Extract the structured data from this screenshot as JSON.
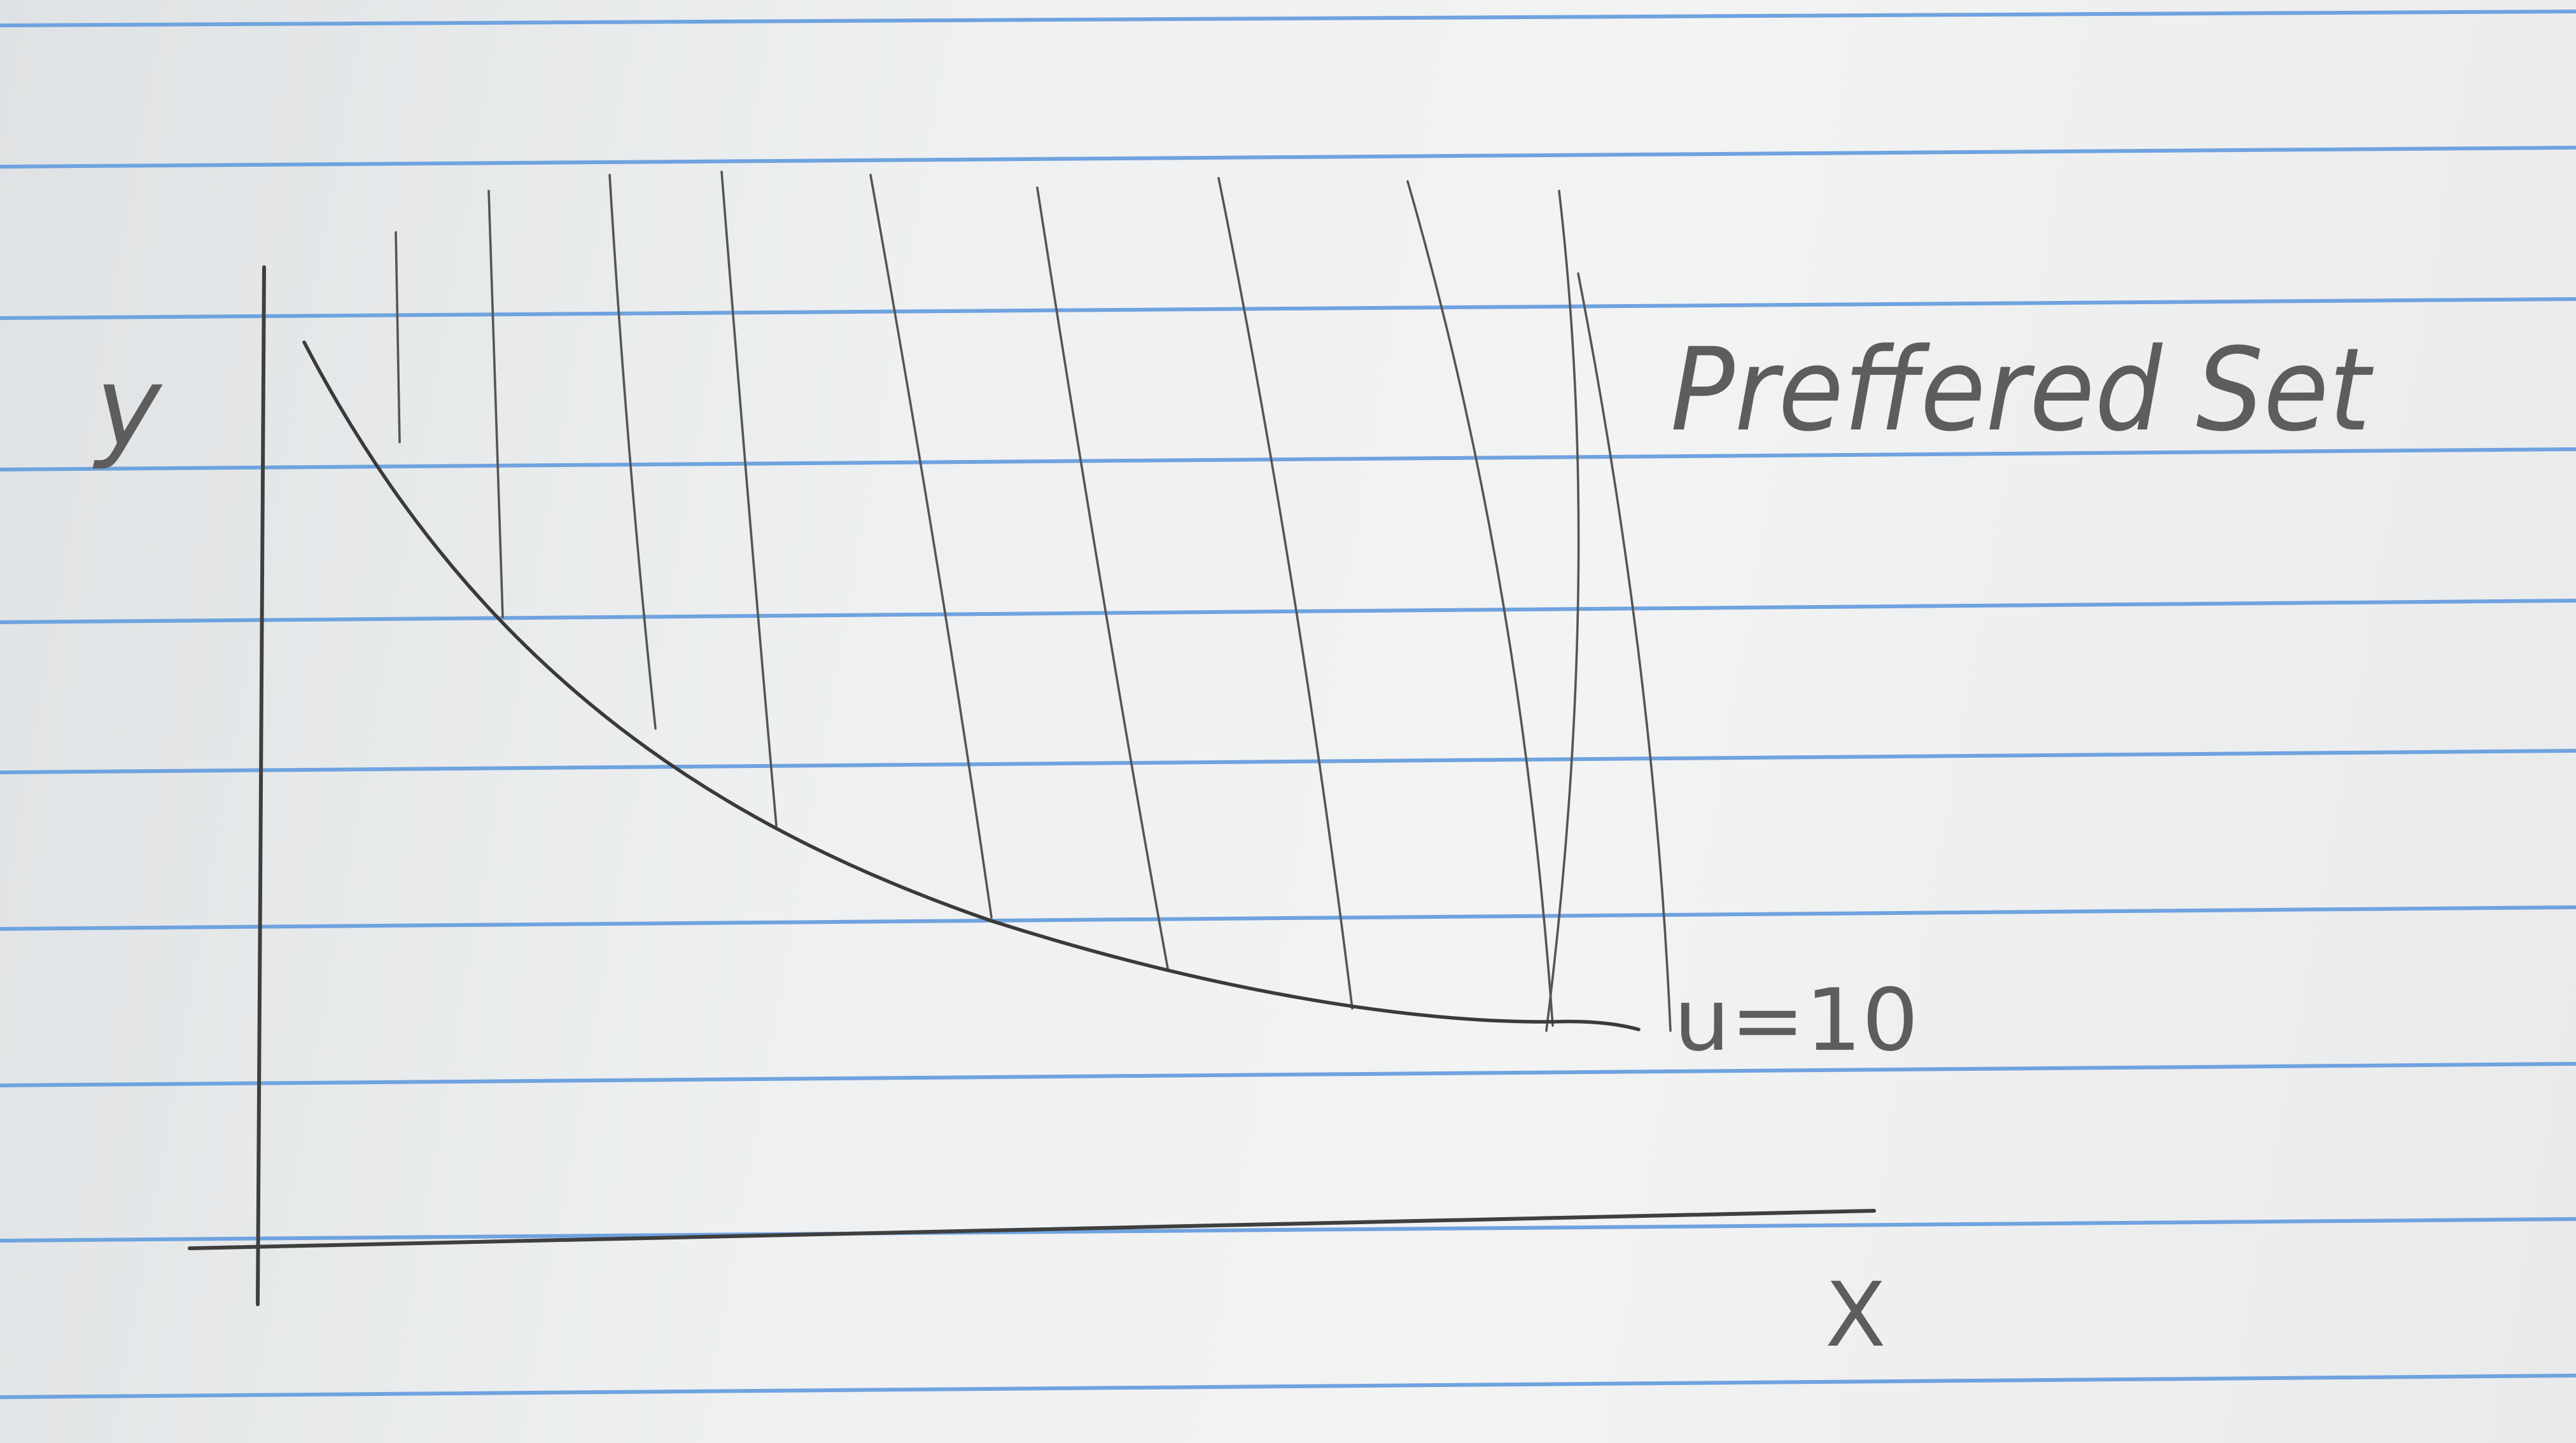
{
  "diagram": {
    "y_axis_label": "y",
    "x_axis_label": "X",
    "region_label": "Preffered Set",
    "curve_label": "u=10"
  },
  "colors": {
    "paper": "#eef0f1",
    "ruled_lines": "#6fa3df",
    "pencil": "#4a4a4a"
  }
}
